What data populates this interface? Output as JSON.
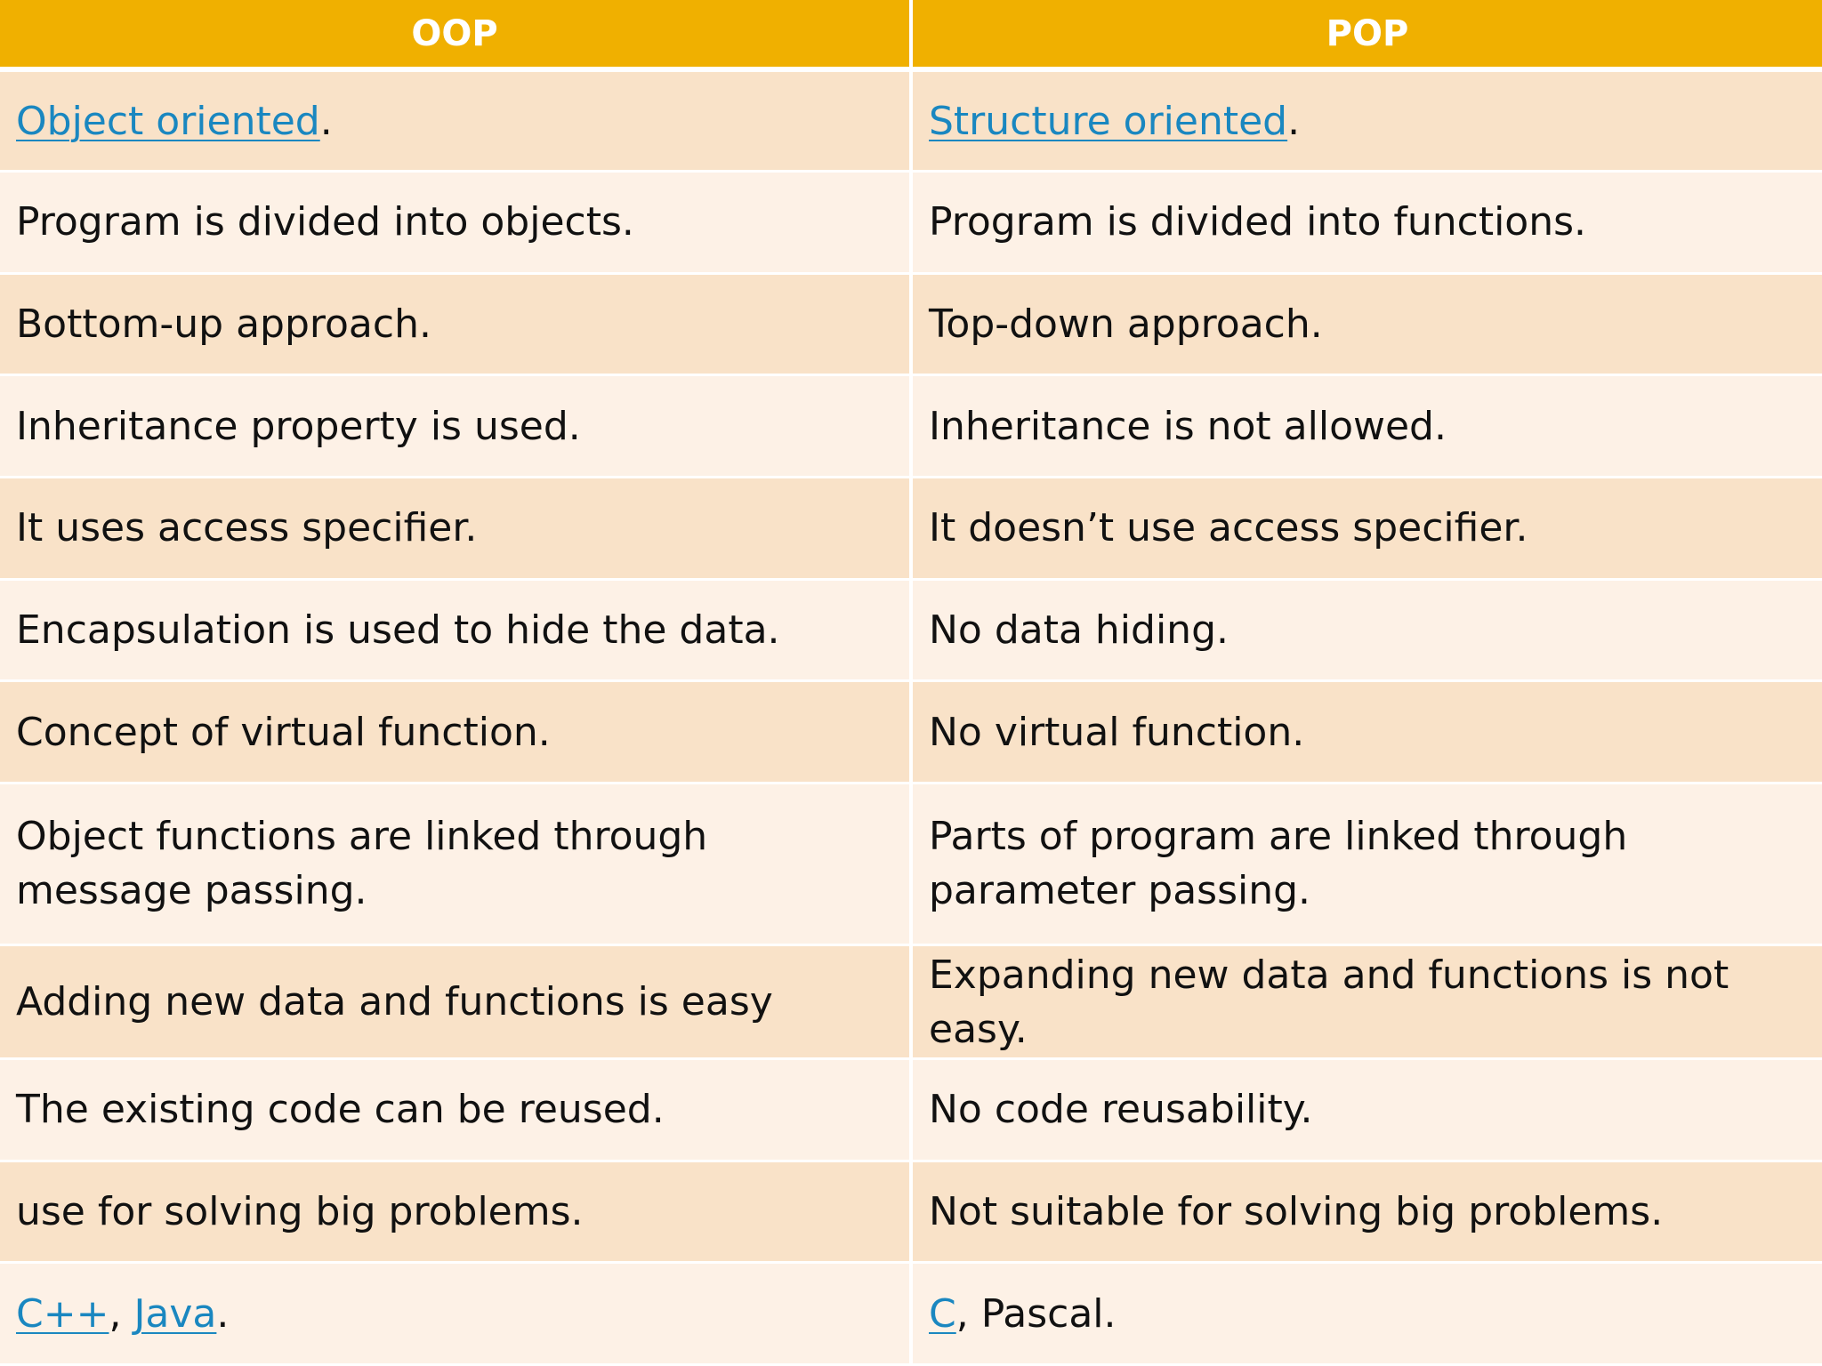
{
  "headers": {
    "oop": "OOP",
    "pop": "POP"
  },
  "rows": [
    {
      "oop": {
        "link": "Object oriented",
        "text": "."
      },
      "pop": {
        "link": "Structure oriented",
        "text": "."
      }
    },
    {
      "oop": "Program is divided into objects.",
      "pop": "Program is divided into functions."
    },
    {
      "oop": "Bottom-up approach.",
      "pop": "Top-down approach."
    },
    {
      "oop": "Inheritance property is used.",
      "pop": "Inheritance is not allowed."
    },
    {
      "oop": "It uses access specifier.",
      "pop": "It doesn’t use access specifier."
    },
    {
      "oop": "Encapsulation is used to hide the data.",
      "pop": "No data hiding."
    },
    {
      "oop": "Concept of virtual function.",
      "pop": "No virtual function."
    },
    {
      "oop": "Object functions are linked through message passing.",
      "pop": "Parts of program are linked through parameter passing."
    },
    {
      "oop": "Adding new data and functions is easy",
      "pop": "Expanding new data and functions is not easy."
    },
    {
      "oop": "The existing code can be reused.",
      "pop": "No code reusability."
    },
    {
      "oop": "use for solving big problems.",
      "pop": "Not suitable for solving big problems."
    },
    {
      "oop": {
        "link1": "C++",
        "sep": ", ",
        "link2": "Java",
        "text": "."
      },
      "pop": {
        "link": "C",
        "text": ", Pascal."
      }
    }
  ],
  "colors": {
    "header_bg": "#f0b000",
    "row_dark": "#f9e2c8",
    "row_light": "#fdf1e6",
    "link": "#1a87c0"
  }
}
